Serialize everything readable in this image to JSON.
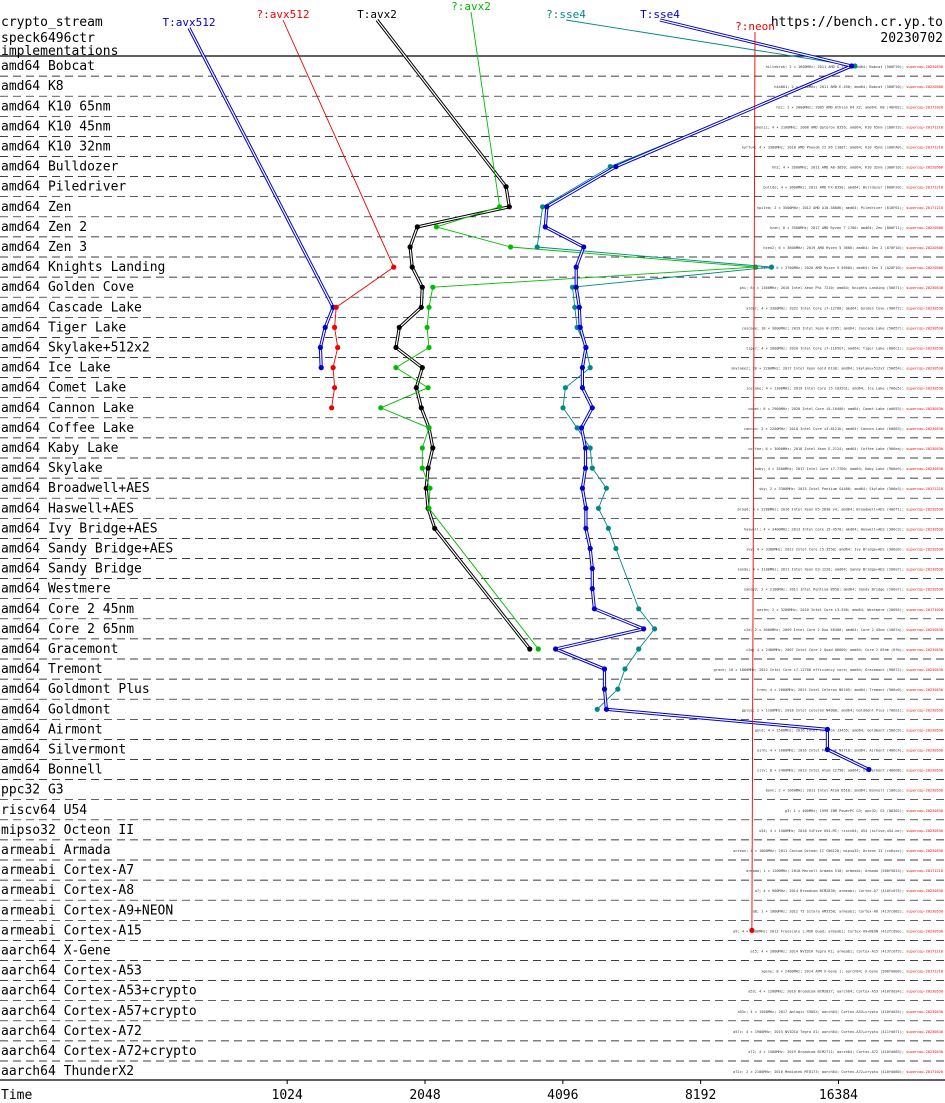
{
  "chart_data": {
    "type": "line",
    "title_lines": [
      "crypto_stream",
      "speck6496ctr",
      "implementations"
    ],
    "source_url": "https://bench.cr.yp.to",
    "date": "20230702",
    "xlabel": "Time",
    "x_scale": "log2",
    "xlim": [
      420,
      28000
    ],
    "x_ticks": [
      1024,
      2048,
      4096,
      8192,
      16384
    ],
    "series": [
      {
        "name": "T:avx512",
        "color": "#0000cc"
      },
      {
        "name": "?:avx512",
        "color": "#ee0000"
      },
      {
        "name": "T:avx2",
        "color": "#000000"
      },
      {
        "name": "?:avx2",
        "color": "#00bb00"
      },
      {
        "name": "?:sse4",
        "color": "#008888"
      },
      {
        "name": "T:sse4",
        "color": "#0000cc"
      },
      {
        "name": "?:neon",
        "color": "#ee0000"
      }
    ],
    "categories": [
      "amd64 Bobcat",
      "amd64 K8",
      "amd64 K10 65nm",
      "amd64 K10 45nm",
      "amd64 K10 32nm",
      "amd64 Bulldozer",
      "amd64 Piledriver",
      "amd64 Zen",
      "amd64 Zen 2",
      "amd64 Zen 3",
      "amd64 Knights Landing",
      "amd64 Golden Cove",
      "amd64 Cascade Lake",
      "amd64 Tiger Lake",
      "amd64 Skylake+512x2",
      "amd64 Ice Lake",
      "amd64 Comet Lake",
      "amd64 Cannon Lake",
      "amd64 Coffee Lake",
      "amd64 Kaby Lake",
      "amd64 Skylake",
      "amd64 Broadwell+AES",
      "amd64 Haswell+AES",
      "amd64 Ivy Bridge+AES",
      "amd64 Sandy Bridge+AES",
      "amd64 Sandy Bridge",
      "amd64 Westmere",
      "amd64 Core 2 45nm",
      "amd64 Core 2 65nm",
      "amd64 Gracemont",
      "amd64 Tremont",
      "amd64 Goldmont Plus",
      "amd64 Goldmont",
      "amd64 Airmont",
      "amd64 Silvermont",
      "amd64 Bonnell",
      "ppc32 G3",
      "riscv64 U54",
      "mipso32 Octeon II",
      "armeabi Armada",
      "armeabi Cortex-A7",
      "armeabi Cortex-A8",
      "armeabi Cortex-A9+NEON",
      "armeabi Cortex-A15",
      "aarch64 X-Gene",
      "aarch64 Cortex-A53",
      "aarch64 Cortex-A53+crypto",
      "aarch64 Cortex-A57+crypto",
      "aarch64 Cortex-A72",
      "aarch64 Cortex-A72+crypto",
      "aarch64 ThunderX2"
    ],
    "machines": [
      "hiltebrok; 2 × 1600MHz; 2011 AMD G-T56N; amd64; Bobcat (500F20); supercop-20230530",
      "h4a001; 2 × 1600MHz; 2011 AMD E-450; amd64; Bobcat (500F20); supercop-20220506",
      "h2c; 2 × 2000MHz; 2005 AMD Athlon 64 X2; amd64; K8 (40FB2); supercop-20171020",
      "phenii; 4 × 2100MHz; 2008 AMD Opteron 8356; amd64; K10 65nm (100F23); supercop-20171218",
      "hyrtu4; 4 × 3300MHz; 2010 AMD Phenom II X6 1100T; amd64; K10 45nm (100FA0); supercop-20171218",
      "hh2; 4 × 2600MHz; 2011 AMD A8-3850; amd64; K10 32nm (300F10); supercop-20220506",
      "bulldo; 4 × 3600MHz; 2012 AMD FX-8350; amd64; Bulldozer (600F20); supercop-20171218",
      "hpiled; 2 × 3500MHz; 2012 AMD A10-5800K; amd64; Piledriver (610F01); supercop-20171218",
      "hzen; 8 × 3500MHz; 2017 AMD Ryzen 7 1700; amd64; Zen (800F11); supercop-20220506",
      "hzen2; 6 × 3600MHz; 2019 AMD Ryzen 5 3600; amd64; Zen 2 (870F10); supercop-20220506",
      "hzen3; 6 × 3700MHz; 2020 AMD Ryzen 5 5600X; amd64; Zen 3 (A20F10); supercop-20220506",
      "phi; 64 × 1300MHz; 2016 Intel Xeon Phi 7210; amd64; Knights Landing (50671); supercop-20230530",
      "alder; 4 × 3300MHz; 2022 Intel Core i7-12700; amd64; Golden Cove (90672); supercop-20230530",
      "cascade; 18 × 3000MHz; 2019 Intel Xeon W-2295; amd64; Cascade Lake (50657); supercop-20230530",
      "tiger; 4 × 2800MHz; 2020 Intel Core i7-1165G7; amd64; Tiger Lake (806c1); supercop-20230530",
      "skylake2; 20 × 2200MHz; 2017 Intel Xeon Gold 6130; amd64; Skylake+512x2 (50654); supercop-20230530",
      "icelake; 4 × 1300MHz; 2019 Intel Core i5-1035G1; amd64; Ice Lake (706e5); supercop-20230530",
      "comet; 6 × 2900MHz; 2020 Intel Core i5-10400; amd64; Comet Lake (a0653); supercop-20230530",
      "cannon; 2 × 2200MHz; 2018 Intel Core i3-8121U; amd64; Cannon Lake (60663); supercop-20230530",
      "coffee; 6 × 3000MHz; 2018 Intel Xeon E-2124; amd64; Coffee Lake (906ea); supercop-20230530",
      "kaby; 4 × 3500MHz; 2017 Intel Core i7-7700; amd64; Kaby Lake (906e9); supercop-20230530",
      "sky; 2 × 3300MHz; 2015 Intel Pentium G4400; amd64; Skylake (506e3); supercop-20171218",
      "broad; 4 × 2200MHz; 2016 Intel Xeon E5-2630 v4; amd64; Broadwell+AES (406f1); supercop-20230530",
      "haswell; 4 × 3400MHz; 2013 Intel Core i5-4570; amd64; Haswell+AES (306c3); supercop-20230530",
      "ivy; 4 × 3300MHz; 2012 Intel Core i5-3550; amd64; Ivy Bridge+AES (306a9); supercop-20230530",
      "sandy; 4 × 3100MHz; 2011 Intel Xeon E3-1220; amd64; Sandy Bridge+AES (206a7); supercop-20230530",
      "sandy2; 2 × 2100MHz; 2011 Intel Pentium B950; amd64; Sandy Bridge (206a7); supercop-20230530",
      "westm; 2 × 3200MHz; 2010 Intel Core i3-550; amd64; Westmere (20655); supercop-20171020",
      "c2d; 2 × 3000MHz; 2009 Intel Core 2 Duo E8400; amd64; Core 2 45nm (1067a); supercop-20230530",
      "c2q; 4 × 2400MHz; 2007 Intel Core 2 Quad Q6600; amd64; Core 2 65nm (6fb); supercop-20230530",
      "grace; 16 × 1800MHz; 2022 Intel Core i7-12700 efficiency core; amd64; Gracemont (90672); supercop-20230530",
      "trem; 4 × 2000MHz; 2021 Intel Celeron N5105; amd64; Tremont (906c0); supercop-20230530",
      "gplus; 2 × 1100MHz; 2018 Intel Celeron N4000; amd64; Goldmont Plus (706a1); supercop-20230530",
      "gold; 4 × 1500MHz; 2016 Intel Celeron J3455; amd64; Goldmont (506c9); supercop-20230530",
      "airm; 4 × 1600MHz; 2016 Intel Pentium N3710; amd64; Airmont (406c4); supercop-20230530",
      "silv; 8 × 2400MHz; 2013 Intel Atom C2758; amd64; Silvermont (406d8); supercop-20230530",
      "bonn; 2 × 1660MHz; 2011 Intel Atom D510; amd64; Bonnell (106ca); supercop-20230530",
      "g3; 1 × 400MHz; 1999 IBM PowerPC G3; ppc32; G3 (88302); supercop-20230530",
      "u54; 4 × 1500MHz; 2018 SiFive U54-MC; riscv64; U54 (sifive,u54-mc); supercop-20230530",
      "octeon; 4 × 1000MHz; 2011 Cavium Octeon II CN6120; mipso32; Octeon II (cn6xxx); supercop-20230530",
      "armada; 1 × 1200MHz; 2010 Marvell Armada 510; armeabi; Armada (560f5815); supercop-20171218",
      "a7; 4 × 900MHz; 2014 Broadcom BCM2836; armeabi; Cortex-A7 (410fc075); supercop-20230530",
      "a8; 1 × 1000MHz; 2012 TI Sitara AM3358; armeabi; Cortex-A8 (413fc082); supercop-20230530",
      "a9; 4 × 1000MHz; 2012 Freescale i.MX6 Quad; armeabi; Cortex-A9+NEON (412fc09a); supercop-20230530",
      "a15; 4 × 2000MHz; 2014 NVIDIA Tegra K1; armeabi; Cortex-A15 (413fc0f3); supercop-20171218",
      "xgene; 8 × 2400MHz; 2014 APM X-Gene 1; aarch64; X-Gene (500f0000); supercop-20171218",
      "a53; 4 × 1200MHz; 2016 Broadcom BCM2837; aarch64; Cortex-A53 (410fd034); supercop-20230530",
      "a53c; 4 × 1500MHz; 2017 Amlogic S905X; aarch64; Cortex-A53+crypto (410fd034); supercop-20230530",
      "a57c; 4 × 1900MHz; 2015 NVIDIA Tegra X1; aarch64; Cortex-A57+crypto (411fd071); supercop-20230530",
      "a72; 4 × 1500MHz; 2019 Broadcom BCM2711; aarch64; Cortex-A72 (410fd083); supercop-20230530",
      "a72c; 2 × 2100MHz; 2016 Mediatek MT8173; aarch64; Cortex-A72+crypto (410fd080); supercop-20171020",
      "tx2; 64 × 2500MHz; 2018 Cavium ThunderX2 CN9980; aarch64; ThunderX2 (431f0af1); supercop-20230530"
    ],
    "values": {
      "T:avx512": [
        [
          12,
          1290
        ],
        [
          13,
          1240
        ],
        [
          14,
          1210
        ],
        [
          15,
          1215
        ]
      ],
      "?:avx512": [
        [
          10,
          1750
        ],
        [
          12,
          1310
        ],
        [
          13,
          1300
        ],
        [
          14,
          1320
        ],
        [
          15,
          1290
        ],
        [
          16,
          1300
        ],
        [
          17,
          1280
        ]
      ],
      "T:avx2": [
        [
          6,
          3080
        ],
        [
          7,
          3130
        ],
        [
          8,
          1970
        ],
        [
          9,
          1900
        ],
        [
          10,
          1920
        ],
        [
          11,
          2020
        ],
        [
          12,
          2010
        ],
        [
          13,
          1800
        ],
        [
          14,
          1770
        ],
        [
          15,
          2020
        ],
        [
          16,
          1960
        ],
        [
          17,
          2010
        ],
        [
          18,
          2090
        ],
        [
          19,
          2130
        ],
        [
          20,
          2080
        ],
        [
          21,
          2060
        ],
        [
          22,
          2080
        ],
        [
          23,
          2150
        ],
        [
          29,
          3470
        ]
      ],
      "?:avx2": [
        [
          7,
          2980
        ],
        [
          8,
          2170
        ],
        [
          9,
          3150
        ],
        [
          10,
          10800
        ],
        [
          11,
          2130
        ],
        [
          12,
          2090
        ],
        [
          13,
          2070
        ],
        [
          14,
          2090
        ],
        [
          15,
          1770
        ],
        [
          16,
          2080
        ],
        [
          17,
          1640
        ],
        [
          18,
          2090
        ],
        [
          19,
          2020
        ],
        [
          20,
          2020
        ],
        [
          21,
          2100
        ],
        [
          22,
          2090
        ],
        [
          29,
          3620
        ]
      ],
      "?:sse4": [
        [
          0,
          17800
        ],
        [
          5,
          5200
        ],
        [
          7,
          3700
        ],
        [
          9,
          3600
        ],
        [
          10,
          11700
        ],
        [
          11,
          4300
        ],
        [
          12,
          4350
        ],
        [
          13,
          4400
        ],
        [
          14,
          4600
        ],
        [
          15,
          4700
        ],
        [
          16,
          4150
        ],
        [
          17,
          4100
        ],
        [
          18,
          4400
        ],
        [
          19,
          4700
        ],
        [
          20,
          4750
        ],
        [
          21,
          5100
        ],
        [
          22,
          4900
        ],
        [
          23,
          5150
        ],
        [
          24,
          5350
        ],
        [
          27,
          6000
        ],
        [
          28,
          6500
        ],
        [
          29,
          6000
        ],
        [
          30,
          5600
        ],
        [
          31,
          5400
        ],
        [
          32,
          4870
        ]
      ],
      "T:sse4": [
        [
          0,
          17500
        ],
        [
          5,
          5350
        ],
        [
          7,
          3780
        ],
        [
          8,
          3750
        ],
        [
          9,
          4550
        ],
        [
          10,
          4380
        ],
        [
          11,
          4380
        ],
        [
          12,
          4450
        ],
        [
          13,
          4470
        ],
        [
          14,
          4600
        ],
        [
          15,
          4520
        ],
        [
          16,
          4520
        ],
        [
          17,
          4750
        ],
        [
          18,
          4500
        ],
        [
          19,
          4590
        ],
        [
          20,
          4590
        ],
        [
          21,
          4520
        ],
        [
          22,
          4600
        ],
        [
          23,
          4600
        ],
        [
          24,
          4700
        ],
        [
          25,
          4750
        ],
        [
          26,
          4750
        ],
        [
          27,
          4800
        ],
        [
          28,
          6150
        ],
        [
          29,
          3950
        ],
        [
          30,
          5050
        ],
        [
          31,
          5050
        ],
        [
          32,
          5100
        ],
        [
          33,
          15500
        ],
        [
          34,
          15500
        ],
        [
          35,
          19100
        ]
      ],
      "?:neon": [
        [
          43,
          10600
        ]
      ]
    }
  }
}
